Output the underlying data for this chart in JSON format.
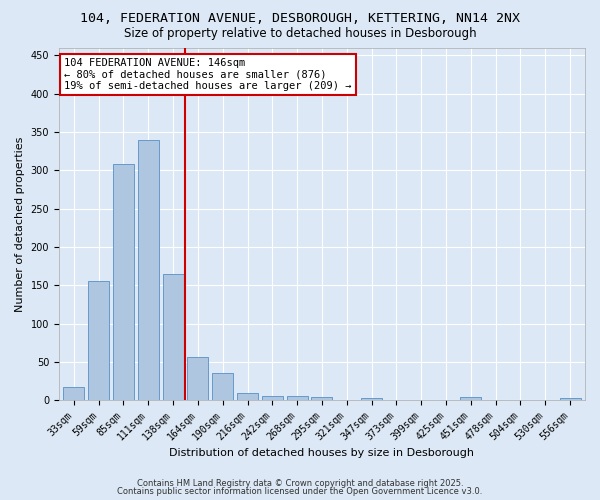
{
  "title1": "104, FEDERATION AVENUE, DESBOROUGH, KETTERING, NN14 2NX",
  "title2": "Size of property relative to detached houses in Desborough",
  "xlabel": "Distribution of detached houses by size in Desborough",
  "ylabel": "Number of detached properties",
  "categories": [
    "33sqm",
    "59sqm",
    "85sqm",
    "111sqm",
    "138sqm",
    "164sqm",
    "190sqm",
    "216sqm",
    "242sqm",
    "268sqm",
    "295sqm",
    "321sqm",
    "347sqm",
    "373sqm",
    "399sqm",
    "425sqm",
    "451sqm",
    "478sqm",
    "504sqm",
    "530sqm",
    "556sqm"
  ],
  "values": [
    17,
    155,
    308,
    340,
    165,
    57,
    35,
    10,
    6,
    5,
    4,
    0,
    3,
    0,
    0,
    0,
    4,
    0,
    0,
    0,
    3
  ],
  "bar_color": "#aec6df",
  "bar_edge_color": "#6699cc",
  "vline_x": 4.5,
  "vline_color": "#cc0000",
  "annotation_text": "104 FEDERATION AVENUE: 146sqm\n← 80% of detached houses are smaller (876)\n19% of semi-detached houses are larger (209) →",
  "annotation_box_color": "#ffffff",
  "annotation_box_edge": "#cc0000",
  "ylim": [
    0,
    460
  ],
  "yticks": [
    0,
    50,
    100,
    150,
    200,
    250,
    300,
    350,
    400,
    450
  ],
  "bg_color": "#dce8f5",
  "plot_bg_color": "#dce8f5",
  "footer_line1": "Contains HM Land Registry data © Crown copyright and database right 2025.",
  "footer_line2": "Contains public sector information licensed under the Open Government Licence v3.0.",
  "title1_fontsize": 9.5,
  "title2_fontsize": 8.5,
  "xlabel_fontsize": 8,
  "ylabel_fontsize": 8,
  "tick_fontsize": 7,
  "footer_fontsize": 6,
  "annotation_fontsize": 7.5
}
